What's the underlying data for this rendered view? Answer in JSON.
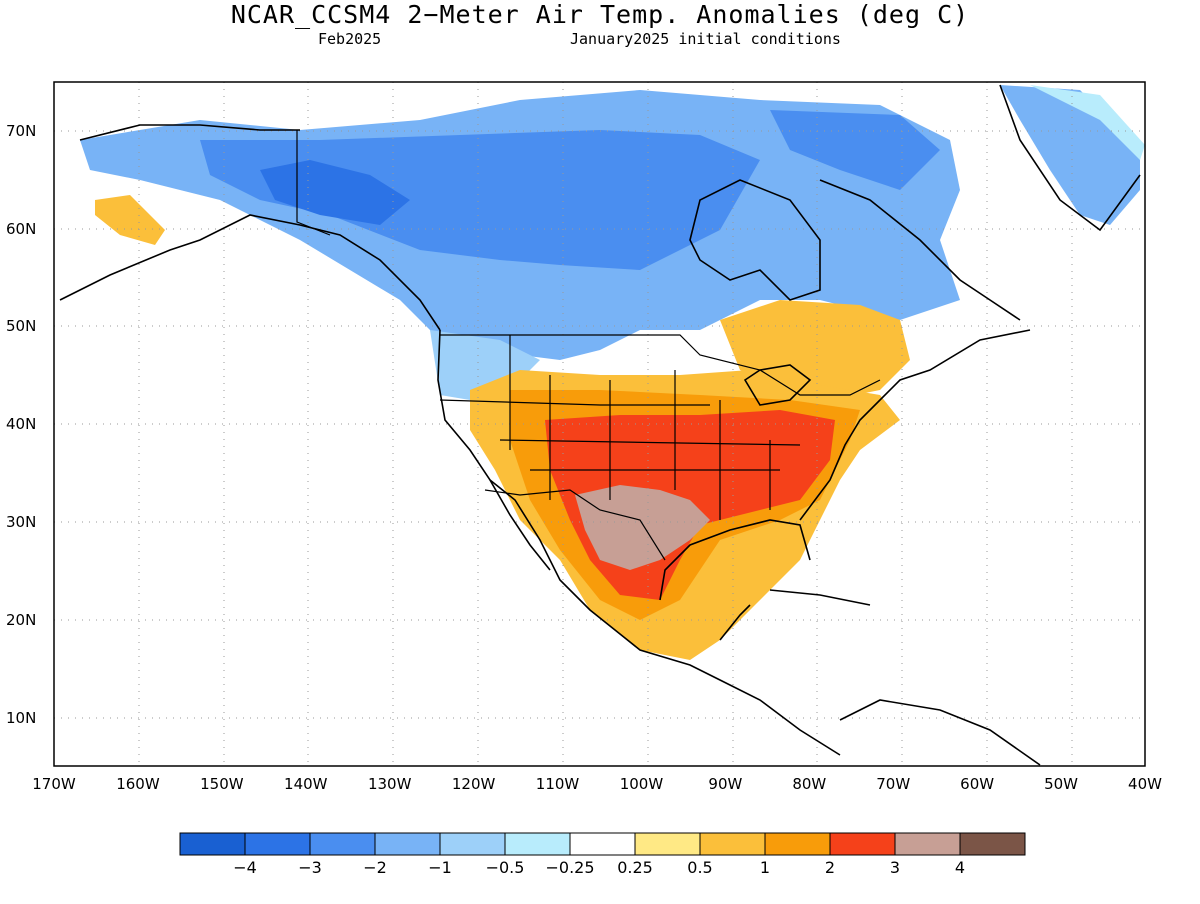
{
  "title": "NCAR_CCSM4 2−Meter Air Temp. Anomalies (deg C)",
  "subtitle_left": "Feb2025",
  "subtitle_right": "January2025 initial conditions",
  "lat_labels": [
    "70N",
    "60N",
    "50N",
    "40N",
    "30N",
    "20N",
    "10N"
  ],
  "lon_labels": [
    "170W",
    "160W",
    "150W",
    "140W",
    "130W",
    "120W",
    "110W",
    "100W",
    "90W",
    "80W",
    "70W",
    "60W",
    "50W",
    "40W"
  ],
  "colorbar": {
    "colors": [
      "#1960d2",
      "#2c73e6",
      "#4a8ef0",
      "#78b3f6",
      "#9dd0f9",
      "#b8ecfc",
      "#ffffff",
      "#ffe985",
      "#fbbf3a",
      "#f89c0a",
      "#f5411a",
      "#c79f95",
      "#7b5547"
    ],
    "labels": [
      "−4",
      "−3",
      "−2",
      "−1",
      "−0.5",
      "−0.25",
      "0.25",
      "0.5",
      "1",
      "2",
      "3",
      "4"
    ]
  }
}
